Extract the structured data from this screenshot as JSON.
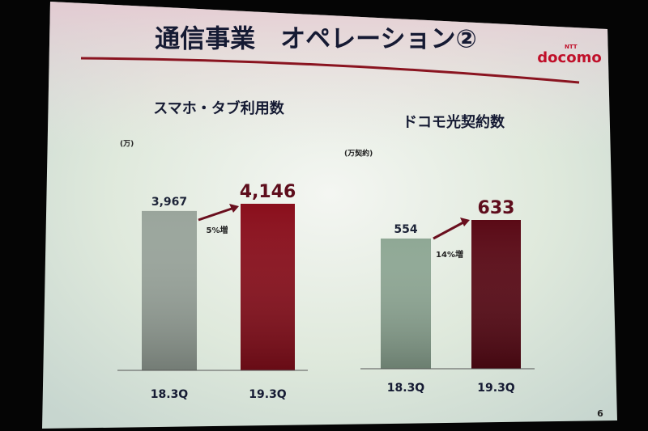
{
  "header": {
    "title": "通信事業　オペレーション②",
    "logo_small": "NTT",
    "logo": "docomo",
    "page": "6"
  },
  "chart_data": [
    {
      "type": "bar",
      "title": "スマホ・タブ利用数",
      "unit": "(万)",
      "categories": [
        "18.3Q",
        "19.3Q"
      ],
      "values": [
        3967,
        4146
      ],
      "value_labels": [
        "3,967",
        "4,146"
      ],
      "colors": [
        "#9aa59c",
        "#8a0f1c"
      ],
      "annotation": "5%増"
    },
    {
      "type": "bar",
      "title": "ドコモ光契約数",
      "unit": "(万契約)",
      "categories": [
        "18.3Q",
        "19.3Q"
      ],
      "values": [
        554,
        633
      ],
      "colors": [
        "#8fa895",
        "#5a0a16"
      ],
      "annotation": "14%増"
    }
  ]
}
